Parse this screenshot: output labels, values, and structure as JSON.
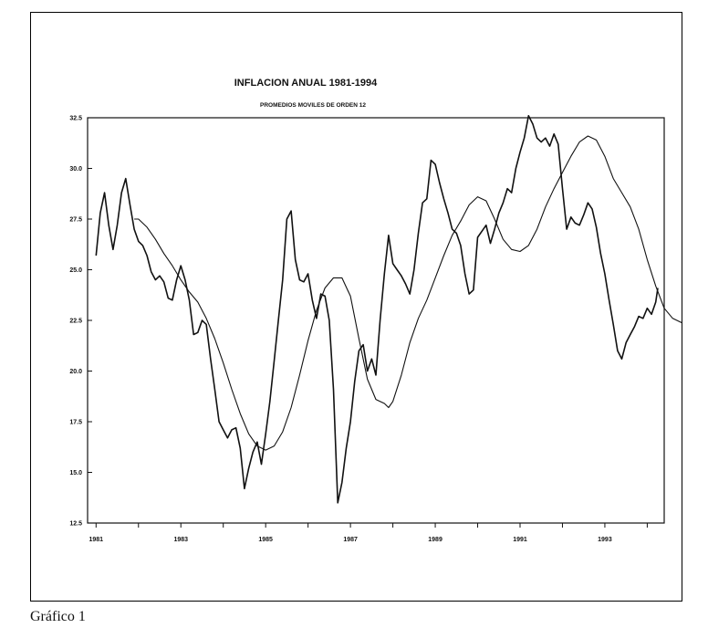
{
  "caption": "Gráfico 1",
  "chart_data": {
    "type": "line",
    "title": "INFLACION ANUAL 1981-1994",
    "subtitle": "PROMEDIOS MOVILES DE ORDEN 12",
    "xlabel": "",
    "ylabel": "",
    "xlim": [
      1980.8,
      1994.4
    ],
    "ylim": [
      12.5,
      32.5
    ],
    "yticks": [
      "12.5",
      "15.0",
      "17.5",
      "20.0",
      "22.5",
      "25.0",
      "27.5",
      "30.0",
      "32.5"
    ],
    "xticks": [
      {
        "label": "1981",
        "x": 1981
      },
      {
        "label": "1983",
        "x": 1983
      },
      {
        "label": "1985",
        "x": 1985
      },
      {
        "label": "1987",
        "x": 1987
      },
      {
        "label": "1989",
        "x": 1989
      },
      {
        "label": "1991",
        "x": 1991
      },
      {
        "label": "1993",
        "x": 1993
      }
    ],
    "grid": false,
    "series": [
      {
        "color": "#111111",
        "width": 1.6,
        "points": [
          [
            1981.0,
            25.7
          ],
          [
            1981.1,
            27.8
          ],
          [
            1981.2,
            28.8
          ],
          [
            1981.3,
            27.2
          ],
          [
            1981.4,
            26.0
          ],
          [
            1981.5,
            27.2
          ],
          [
            1981.6,
            28.8
          ],
          [
            1981.7,
            29.5
          ],
          [
            1981.8,
            28.2
          ],
          [
            1981.9,
            27.0
          ],
          [
            1982.0,
            26.4
          ],
          [
            1982.1,
            26.2
          ],
          [
            1982.2,
            25.7
          ],
          [
            1982.3,
            24.9
          ],
          [
            1982.4,
            24.5
          ],
          [
            1982.5,
            24.7
          ],
          [
            1982.6,
            24.4
          ],
          [
            1982.7,
            23.6
          ],
          [
            1982.8,
            23.5
          ],
          [
            1982.9,
            24.5
          ],
          [
            1983.0,
            25.2
          ],
          [
            1983.1,
            24.5
          ],
          [
            1983.2,
            23.5
          ],
          [
            1983.3,
            21.8
          ],
          [
            1983.4,
            21.9
          ],
          [
            1983.5,
            22.5
          ],
          [
            1983.6,
            22.3
          ],
          [
            1983.7,
            20.6
          ],
          [
            1983.8,
            19.1
          ],
          [
            1983.9,
            17.5
          ],
          [
            1984.0,
            17.1
          ],
          [
            1984.1,
            16.7
          ],
          [
            1984.2,
            17.1
          ],
          [
            1984.3,
            17.2
          ],
          [
            1984.4,
            16.2
          ],
          [
            1984.5,
            14.2
          ],
          [
            1984.6,
            15.2
          ],
          [
            1984.7,
            16.0
          ],
          [
            1984.8,
            16.5
          ],
          [
            1984.9,
            15.4
          ],
          [
            1985.0,
            16.9
          ],
          [
            1985.1,
            18.5
          ],
          [
            1985.2,
            20.5
          ],
          [
            1985.3,
            22.5
          ],
          [
            1985.4,
            24.5
          ],
          [
            1985.5,
            27.5
          ],
          [
            1985.6,
            27.9
          ],
          [
            1985.7,
            25.5
          ],
          [
            1985.8,
            24.5
          ],
          [
            1985.9,
            24.4
          ],
          [
            1986.0,
            24.8
          ],
          [
            1986.1,
            23.5
          ],
          [
            1986.2,
            22.6
          ],
          [
            1986.3,
            23.8
          ],
          [
            1986.4,
            23.7
          ],
          [
            1986.5,
            22.5
          ],
          [
            1986.6,
            19.1
          ],
          [
            1986.7,
            13.5
          ],
          [
            1986.8,
            14.5
          ],
          [
            1986.9,
            16.2
          ],
          [
            1987.0,
            17.5
          ],
          [
            1987.1,
            19.5
          ],
          [
            1987.2,
            21.0
          ],
          [
            1987.3,
            21.3
          ],
          [
            1987.4,
            20.0
          ],
          [
            1987.5,
            20.6
          ],
          [
            1987.6,
            19.8
          ],
          [
            1987.7,
            22.5
          ],
          [
            1987.8,
            24.8
          ],
          [
            1987.9,
            26.7
          ],
          [
            1988.0,
            25.3
          ],
          [
            1988.1,
            25.0
          ],
          [
            1988.2,
            24.7
          ],
          [
            1988.3,
            24.3
          ],
          [
            1988.4,
            23.8
          ],
          [
            1988.5,
            25.0
          ],
          [
            1988.6,
            26.8
          ],
          [
            1988.7,
            28.3
          ],
          [
            1988.8,
            28.5
          ],
          [
            1988.9,
            30.4
          ],
          [
            1989.0,
            30.2
          ],
          [
            1989.1,
            29.3
          ],
          [
            1989.2,
            28.5
          ],
          [
            1989.3,
            27.8
          ],
          [
            1989.4,
            27.0
          ],
          [
            1989.5,
            26.8
          ],
          [
            1989.6,
            26.2
          ],
          [
            1989.7,
            24.8
          ],
          [
            1989.8,
            23.8
          ],
          [
            1989.9,
            24.0
          ],
          [
            1990.0,
            26.6
          ],
          [
            1990.1,
            26.9
          ],
          [
            1990.2,
            27.2
          ],
          [
            1990.3,
            26.3
          ],
          [
            1990.4,
            27.0
          ],
          [
            1990.5,
            27.8
          ],
          [
            1990.6,
            28.3
          ],
          [
            1990.7,
            29.0
          ],
          [
            1990.8,
            28.8
          ],
          [
            1990.9,
            30.0
          ],
          [
            1991.0,
            30.8
          ],
          [
            1991.1,
            31.5
          ],
          [
            1991.2,
            32.6
          ],
          [
            1991.3,
            32.2
          ],
          [
            1991.4,
            31.5
          ],
          [
            1991.5,
            31.3
          ],
          [
            1991.6,
            31.5
          ],
          [
            1991.7,
            31.1
          ],
          [
            1991.8,
            31.7
          ],
          [
            1991.9,
            31.2
          ],
          [
            1992.0,
            29.0
          ],
          [
            1992.1,
            27.0
          ],
          [
            1992.2,
            27.6
          ],
          [
            1992.3,
            27.3
          ],
          [
            1992.4,
            27.2
          ],
          [
            1992.5,
            27.7
          ],
          [
            1992.6,
            28.3
          ],
          [
            1992.7,
            28.0
          ],
          [
            1992.8,
            27.1
          ],
          [
            1992.9,
            25.8
          ],
          [
            1993.0,
            24.8
          ],
          [
            1993.1,
            23.5
          ],
          [
            1993.2,
            22.3
          ],
          [
            1993.3,
            21.0
          ],
          [
            1993.4,
            20.6
          ],
          [
            1993.5,
            21.4
          ],
          [
            1993.6,
            21.8
          ],
          [
            1993.7,
            22.2
          ],
          [
            1993.8,
            22.7
          ],
          [
            1993.9,
            22.6
          ],
          [
            1994.0,
            23.1
          ],
          [
            1994.1,
            22.8
          ],
          [
            1994.2,
            23.4
          ],
          [
            1994.25,
            24.1
          ]
        ]
      },
      {
        "color": "#111111",
        "width": 1.1,
        "points": [
          [
            1981.9,
            27.5
          ],
          [
            1982.0,
            27.5
          ],
          [
            1982.2,
            27.1
          ],
          [
            1982.4,
            26.5
          ],
          [
            1982.6,
            25.8
          ],
          [
            1982.8,
            25.2
          ],
          [
            1983.0,
            24.5
          ],
          [
            1983.2,
            23.9
          ],
          [
            1983.4,
            23.4
          ],
          [
            1983.6,
            22.6
          ],
          [
            1983.8,
            21.6
          ],
          [
            1984.0,
            20.4
          ],
          [
            1984.2,
            19.1
          ],
          [
            1984.4,
            17.9
          ],
          [
            1984.6,
            16.9
          ],
          [
            1984.8,
            16.3
          ],
          [
            1985.0,
            16.1
          ],
          [
            1985.2,
            16.3
          ],
          [
            1985.4,
            17.0
          ],
          [
            1985.6,
            18.2
          ],
          [
            1985.8,
            19.8
          ],
          [
            1986.0,
            21.5
          ],
          [
            1986.2,
            23.0
          ],
          [
            1986.4,
            24.1
          ],
          [
            1986.6,
            24.6
          ],
          [
            1986.8,
            24.6
          ],
          [
            1987.0,
            23.7
          ],
          [
            1987.2,
            21.6
          ],
          [
            1987.4,
            19.6
          ],
          [
            1987.6,
            18.6
          ],
          [
            1987.8,
            18.4
          ],
          [
            1987.9,
            18.2
          ],
          [
            1988.0,
            18.5
          ],
          [
            1988.2,
            19.8
          ],
          [
            1988.4,
            21.4
          ],
          [
            1988.6,
            22.6
          ],
          [
            1988.8,
            23.5
          ],
          [
            1989.0,
            24.6
          ],
          [
            1989.2,
            25.7
          ],
          [
            1989.4,
            26.7
          ],
          [
            1989.6,
            27.4
          ],
          [
            1989.8,
            28.2
          ],
          [
            1990.0,
            28.6
          ],
          [
            1990.2,
            28.4
          ],
          [
            1990.4,
            27.5
          ],
          [
            1990.6,
            26.5
          ],
          [
            1990.8,
            26.0
          ],
          [
            1991.0,
            25.9
          ],
          [
            1991.2,
            26.2
          ],
          [
            1991.4,
            27.0
          ],
          [
            1991.6,
            28.1
          ],
          [
            1991.8,
            29.0
          ],
          [
            1992.0,
            29.8
          ],
          [
            1992.2,
            30.6
          ],
          [
            1992.4,
            31.3
          ],
          [
            1992.6,
            31.6
          ],
          [
            1992.8,
            31.4
          ],
          [
            1993.0,
            30.6
          ],
          [
            1993.2,
            29.5
          ],
          [
            1993.4,
            28.8
          ],
          [
            1993.6,
            28.1
          ],
          [
            1993.8,
            27.0
          ],
          [
            1994.0,
            25.5
          ],
          [
            1994.2,
            24.2
          ],
          [
            1994.4,
            23.1
          ],
          [
            1994.6,
            22.6
          ],
          [
            1994.8,
            22.4
          ],
          [
            1995.0,
            22.3
          ],
          [
            1995.15,
            22.2
          ]
        ]
      }
    ]
  }
}
